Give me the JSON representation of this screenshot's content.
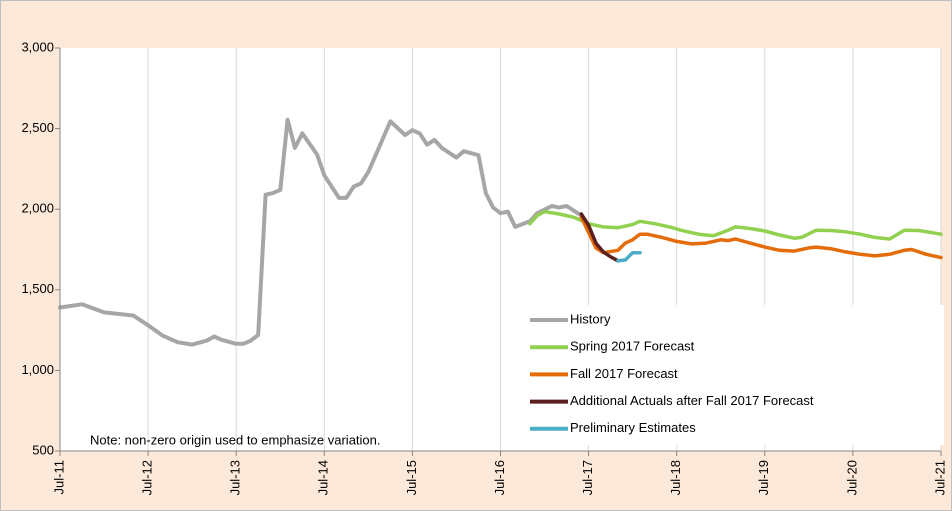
{
  "chart_data": {
    "type": "line",
    "note": "Note: non-zero origin used to emphasize variation.",
    "xlim": [
      "2011-07",
      "2021-07"
    ],
    "xticks": [
      {
        "value": "2011-07",
        "label": "Jul-11"
      },
      {
        "value": "2012-07",
        "label": "Jul-12"
      },
      {
        "value": "2013-07",
        "label": "Jul-13"
      },
      {
        "value": "2014-07",
        "label": "Jul-14"
      },
      {
        "value": "2015-07",
        "label": "Jul-15"
      },
      {
        "value": "2016-07",
        "label": "Jul-16"
      },
      {
        "value": "2017-07",
        "label": "Jul-17"
      },
      {
        "value": "2018-07",
        "label": "Jul-18"
      },
      {
        "value": "2019-07",
        "label": "Jul-19"
      },
      {
        "value": "2020-07",
        "label": "Jul-20"
      },
      {
        "value": "2021-07",
        "label": "Jul-21"
      }
    ],
    "ylim": [
      500,
      3000
    ],
    "yticks": [
      500,
      {
        "value": 1000,
        "label": "1,000"
      },
      {
        "value": 1500,
        "label": "1,500"
      },
      {
        "value": 2000,
        "label": "2,000"
      },
      {
        "value": 2500,
        "label": "2,500"
      },
      {
        "value": 3000,
        "label": "3,000"
      }
    ],
    "grid": true,
    "legend": "lower right",
    "series": [
      {
        "name": "History",
        "color": "#a6a6a6",
        "x": [
          "2011-07",
          "2011-10",
          "2012-01",
          "2012-04",
          "2012-05",
          "2012-07",
          "2012-09",
          "2012-11",
          "2013-01",
          "2013-03",
          "2013-04",
          "2013-05",
          "2013-07",
          "2013-08",
          "2013-09",
          "2013-10",
          "2013-11",
          "2013-12",
          "2014-01",
          "2014-02",
          "2014-03",
          "2014-04",
          "2014-06",
          "2014-07",
          "2014-09",
          "2014-10",
          "2014-11",
          "2014-12",
          "2015-01",
          "2015-04",
          "2015-06",
          "2015-07",
          "2015-08",
          "2015-09",
          "2015-10",
          "2015-11",
          "2016-01",
          "2016-02",
          "2016-04",
          "2016-05",
          "2016-06",
          "2016-07",
          "2016-08",
          "2016-09",
          "2016-11",
          "2016-12",
          "2017-02",
          "2017-03",
          "2017-04",
          "2017-06"
        ],
        "values": [
          1390,
          1410,
          1360,
          1345,
          1340,
          1280,
          1215,
          1175,
          1160,
          1185,
          1210,
          1190,
          1165,
          1165,
          1185,
          1220,
          2090,
          2100,
          2120,
          2555,
          2380,
          2470,
          2340,
          2210,
          2070,
          2070,
          2140,
          2160,
          2230,
          2545,
          2460,
          2490,
          2470,
          2400,
          2430,
          2380,
          2320,
          2360,
          2335,
          2100,
          2010,
          1975,
          1985,
          1890,
          1925,
          1975,
          2020,
          2010,
          2020,
          1960
        ]
      },
      {
        "name": "Spring 2017 Forecast",
        "color": "#92d050",
        "x": [
          "2016-11",
          "2016-12",
          "2017-01",
          "2017-03",
          "2017-05",
          "2017-07",
          "2017-09",
          "2017-11",
          "2018-01",
          "2018-02",
          "2018-04",
          "2018-06",
          "2018-08",
          "2018-10",
          "2018-12",
          "2019-02",
          "2019-03",
          "2019-05",
          "2019-07",
          "2019-09",
          "2019-11",
          "2019-12",
          "2020-02",
          "2020-04",
          "2020-06",
          "2020-08",
          "2020-10",
          "2020-12",
          "2021-02",
          "2021-04",
          "2021-07"
        ],
        "values": [
          1910,
          1960,
          1985,
          1970,
          1950,
          1910,
          1890,
          1885,
          1905,
          1925,
          1910,
          1890,
          1865,
          1845,
          1835,
          1870,
          1890,
          1880,
          1865,
          1840,
          1820,
          1825,
          1870,
          1868,
          1860,
          1845,
          1825,
          1815,
          1870,
          1868,
          1845
        ]
      },
      {
        "name": "Fall 2017 Forecast",
        "color": "#e46c0a",
        "x": [
          "2017-06",
          "2017-08",
          "2017-09",
          "2017-11",
          "2017-12",
          "2018-01",
          "2018-02",
          "2018-03",
          "2018-05",
          "2018-07",
          "2018-09",
          "2018-11",
          "2019-01",
          "2019-02",
          "2019-03",
          "2019-05",
          "2019-07",
          "2019-09",
          "2019-11",
          "2020-01",
          "2020-02",
          "2020-04",
          "2020-06",
          "2020-08",
          "2020-10",
          "2020-12",
          "2021-02",
          "2021-03",
          "2021-05",
          "2021-07"
        ],
        "values": [
          1950,
          1760,
          1730,
          1745,
          1790,
          1810,
          1845,
          1845,
          1825,
          1800,
          1785,
          1790,
          1810,
          1805,
          1815,
          1790,
          1765,
          1745,
          1740,
          1760,
          1765,
          1755,
          1735,
          1720,
          1710,
          1720,
          1745,
          1750,
          1720,
          1700
        ]
      },
      {
        "name": "Additional Actuals after Fall 2017 Forecast",
        "color": "#5b1f1f",
        "x": [
          "2017-06",
          "2017-07",
          "2017-08",
          "2017-09",
          "2017-10",
          "2017-11"
        ],
        "values": [
          1970,
          1900,
          1790,
          1735,
          1705,
          1680
        ]
      },
      {
        "name": "Preliminary Estimates",
        "color": "#4bacc6",
        "x": [
          "2017-11",
          "2017-12",
          "2018-01",
          "2018-02"
        ],
        "values": [
          1680,
          1685,
          1730,
          1730
        ]
      }
    ]
  }
}
